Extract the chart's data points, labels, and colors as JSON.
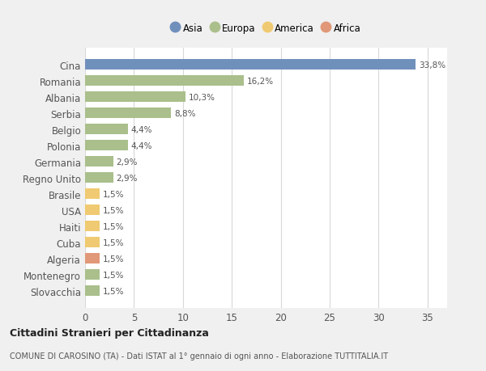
{
  "categories": [
    "Cina",
    "Romania",
    "Albania",
    "Serbia",
    "Belgio",
    "Polonia",
    "Germania",
    "Regno Unito",
    "Brasile",
    "USA",
    "Haiti",
    "Cuba",
    "Algeria",
    "Montenegro",
    "Slovacchia"
  ],
  "values": [
    33.8,
    16.2,
    10.3,
    8.8,
    4.4,
    4.4,
    2.9,
    2.9,
    1.5,
    1.5,
    1.5,
    1.5,
    1.5,
    1.5,
    1.5
  ],
  "labels": [
    "33,8%",
    "16,2%",
    "10,3%",
    "8,8%",
    "4,4%",
    "4,4%",
    "2,9%",
    "2,9%",
    "1,5%",
    "1,5%",
    "1,5%",
    "1,5%",
    "1,5%",
    "1,5%",
    "1,5%"
  ],
  "colors": [
    "#7090bc",
    "#aabf8c",
    "#aabf8c",
    "#aabf8c",
    "#aabf8c",
    "#aabf8c",
    "#aabf8c",
    "#aabf8c",
    "#f0ca72",
    "#f0ca72",
    "#f0ca72",
    "#f0ca72",
    "#e09878",
    "#aabf8c",
    "#aabf8c"
  ],
  "legend_labels": [
    "Asia",
    "Europa",
    "America",
    "Africa"
  ],
  "legend_colors": [
    "#7090bc",
    "#aabf8c",
    "#f0ca72",
    "#e09878"
  ],
  "title": "Cittadini Stranieri per Cittadinanza",
  "subtitle": "COMUNE DI CAROSINO (TA) - Dati ISTAT al 1° gennaio di ogni anno - Elaborazione TUTTITALIA.IT",
  "xlim": [
    0,
    37
  ],
  "xticks": [
    0,
    5,
    10,
    15,
    20,
    25,
    30,
    35
  ],
  "background_color": "#f0f0f0",
  "bar_background": "#ffffff",
  "grid_color": "#d8d8d8"
}
